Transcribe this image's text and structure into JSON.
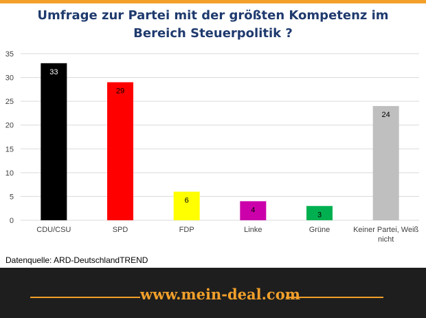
{
  "chart_data": {
    "type": "bar",
    "title_lines": [
      "Umfrage zur Partei mit der größten Kompetenz im",
      "Bereich Steuerpolitik  ?"
    ],
    "categories": [
      "CDU/CSU",
      "SPD",
      "FDP",
      "Linke",
      "Grüne",
      "Keiner Partei, Weiß nicht"
    ],
    "values": [
      33,
      29,
      6,
      4,
      3,
      24
    ],
    "bar_colors": [
      "#000000",
      "#ff0000",
      "#ffff00",
      "#cc00aa",
      "#00b050",
      "#bfbfbf"
    ],
    "label_colors": [
      "#ffffff",
      "#000000",
      "#000000",
      "#000000",
      "#000000",
      "#000000"
    ],
    "ylim": [
      0,
      35
    ],
    "yticks": [
      0,
      5,
      10,
      15,
      20,
      25,
      30,
      35
    ],
    "grid": true,
    "legend": "none"
  },
  "source": "Datenquelle: ARD-DeutschlandTREND",
  "footer": {
    "url": "www.mein-deal.com",
    "accent_color": "#f2a02a",
    "background": "#1e1e1e"
  }
}
